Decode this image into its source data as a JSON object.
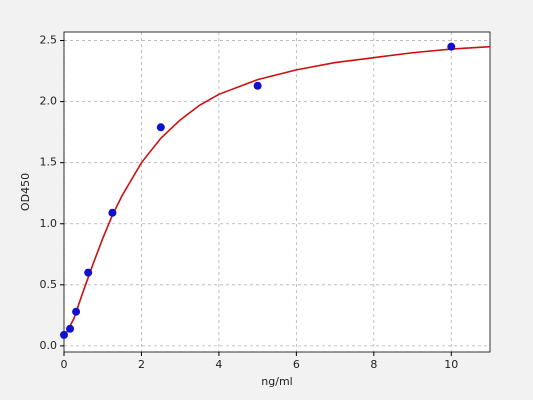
{
  "chart_data": {
    "type": "scatter",
    "x_label": "ng/ml",
    "y_label": "OD450",
    "xlim": [
      0,
      11
    ],
    "ylim": [
      -0.05,
      2.57
    ],
    "xticks": [
      0,
      2,
      4,
      6,
      8,
      10
    ],
    "yticks": [
      {
        "value": 0,
        "label": "0.0"
      },
      {
        "value": 0.5,
        "label": "0.5"
      },
      {
        "value": 1,
        "label": "1.0"
      },
      {
        "value": 1.5,
        "label": "1.5"
      },
      {
        "value": 2,
        "label": "2.0"
      },
      {
        "value": 2.5,
        "label": "2.5"
      }
    ],
    "grid": true,
    "series": [
      {
        "style": "markers",
        "color": "#1010d0",
        "x": [
          0,
          0.156,
          0.312,
          0.625,
          1.25,
          2.5,
          5,
          10
        ],
        "values": [
          0.09,
          0.14,
          0.28,
          0.6,
          1.09,
          1.79,
          2.13,
          2.45
        ]
      },
      {
        "style": "line",
        "color": "#cc1111",
        "x": [
          0,
          0.25,
          0.5,
          0.75,
          1,
          1.25,
          1.5,
          2,
          2.5,
          3,
          3.5,
          4,
          5,
          6,
          7,
          8,
          9,
          10,
          11
        ],
        "values": [
          0.07,
          0.22,
          0.45,
          0.67,
          0.88,
          1.07,
          1.23,
          1.5,
          1.7,
          1.85,
          1.97,
          2.06,
          2.18,
          2.26,
          2.32,
          2.36,
          2.4,
          2.43,
          2.45
        ]
      }
    ]
  }
}
